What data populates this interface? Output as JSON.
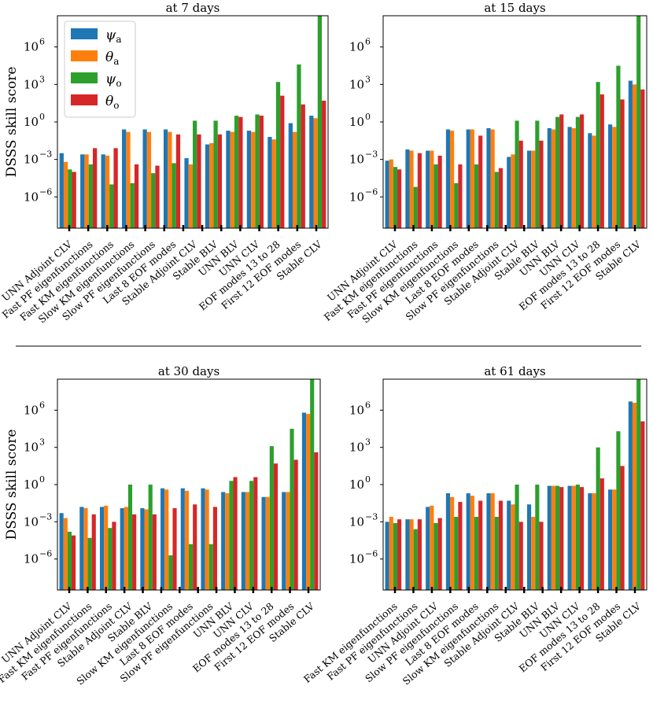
{
  "colors": {
    "psi_a": "#1f77b4",
    "theta_a": "#ff7f0e",
    "psi_o": "#2ca02c",
    "theta_o": "#d62728"
  },
  "legend": [
    {
      "key": "psi_a",
      "symbol": "ψ",
      "sub": "a"
    },
    {
      "key": "theta_a",
      "symbol": "θ",
      "sub": "a"
    },
    {
      "key": "psi_o",
      "symbol": "ψ",
      "sub": "o"
    },
    {
      "key": "theta_o",
      "symbol": "θ",
      "sub": "o"
    }
  ],
  "chart_data": [
    {
      "type": "bar",
      "title": "at 7 days",
      "ylabel": "DSSS skill score",
      "yscale": "log",
      "ylim_exp": [
        -8.5,
        8.5
      ],
      "yticks": [
        {
          "exp": -6,
          "label": "10"
        },
        {
          "exp": -3,
          "label": "10"
        },
        {
          "exp": 0,
          "label": "10"
        },
        {
          "exp": 3,
          "label": "10"
        },
        {
          "exp": 6,
          "label": "10"
        }
      ],
      "ytick_sup": [
        "−6",
        "−3",
        "0",
        "3",
        "6"
      ],
      "categories": [
        "UNN Adjoint CLV",
        "Fast PF eigenfunctions",
        "Fast KM eigenfunctions",
        "Slow KM eigenfunctions",
        "Slow PF eigenfunctions",
        "Last 8 EOF modes",
        "Stable Adjoint CLV",
        "Stable BLV",
        "UNN BLV",
        "UNN CLV",
        "EOF modes 13 to 28",
        "First 12 EOF modes",
        "Stable CLV"
      ],
      "series_exp": [
        {
          "name": "psi_a",
          "values": [
            -2.5,
            -2.6,
            -2.6,
            -0.6,
            -0.6,
            -0.6,
            -2.9,
            -1.8,
            -0.7,
            -0.7,
            -1.2,
            -0.1,
            0.5
          ]
        },
        {
          "name": "theta_a",
          "values": [
            -3.2,
            -2.6,
            -2.7,
            -0.8,
            -0.8,
            -0.8,
            -3.4,
            -1.7,
            -0.8,
            -0.8,
            -1.4,
            -0.8,
            0.3
          ]
        },
        {
          "name": "psi_o",
          "values": [
            -3.8,
            -3.4,
            -5.0,
            -4.9,
            -4.1,
            -3.3,
            0.1,
            0.1,
            0.5,
            0.6,
            3.2,
            4.6,
            8.5
          ]
        },
        {
          "name": "theta_o",
          "values": [
            -4.0,
            -2.1,
            -2.1,
            -3.4,
            -3.5,
            -1.0,
            -1.0,
            -1.0,
            0.4,
            0.5,
            2.1,
            1.4,
            1.7
          ]
        }
      ]
    },
    {
      "type": "bar",
      "title": "at 15 days",
      "ylabel": "",
      "yscale": "log",
      "ylim_exp": [
        -8.5,
        8.5
      ],
      "yticks": [
        {
          "exp": -6,
          "label": "10"
        },
        {
          "exp": -3,
          "label": "10"
        },
        {
          "exp": 0,
          "label": "10"
        },
        {
          "exp": 3,
          "label": "10"
        },
        {
          "exp": 6,
          "label": "10"
        }
      ],
      "ytick_sup": [
        "−6",
        "−3",
        "0",
        "3",
        "6"
      ],
      "categories": [
        "UNN Adjoint CLV",
        "Fast KM eigenfunctions",
        "Fast PF eigenfunctions",
        "Slow KM eigenfunctions",
        "Last 8 EOF modes",
        "Slow PF eigenfunctions",
        "Stable Adjoint CLV",
        "Stable BLV",
        "UNN BLV",
        "UNN CLV",
        "EOF modes 13 to 28",
        "First 12 EOF modes",
        "Stable CLV"
      ],
      "series_exp": [
        {
          "name": "psi_a",
          "values": [
            -3.1,
            -2.2,
            -2.3,
            -0.6,
            -0.6,
            -0.5,
            -2.8,
            -2.3,
            -0.5,
            -0.4,
            -0.9,
            -0.2,
            3.3
          ]
        },
        {
          "name": "theta_a",
          "values": [
            -3.0,
            -2.3,
            -2.3,
            -0.7,
            -0.6,
            -0.6,
            -2.6,
            -2.3,
            -0.6,
            -0.5,
            -1.1,
            -0.4,
            3.0
          ]
        },
        {
          "name": "psi_o",
          "values": [
            -3.6,
            -5.2,
            -3.4,
            -4.9,
            -3.4,
            -4.0,
            0.1,
            0.1,
            0.4,
            0.4,
            3.2,
            4.5,
            8.5
          ]
        },
        {
          "name": "theta_o",
          "values": [
            -3.8,
            -2.5,
            -2.7,
            -3.4,
            -1.1,
            -3.7,
            -1.5,
            -1.5,
            0.6,
            0.6,
            2.2,
            1.8,
            2.6
          ]
        }
      ]
    },
    {
      "type": "bar",
      "title": "at 30 days",
      "ylabel": "DSSS skill score",
      "yscale": "log",
      "ylim_exp": [
        -8.5,
        8.5
      ],
      "yticks": [
        {
          "exp": -6,
          "label": "10"
        },
        {
          "exp": -3,
          "label": "10"
        },
        {
          "exp": 0,
          "label": "10"
        },
        {
          "exp": 3,
          "label": "10"
        },
        {
          "exp": 6,
          "label": "10"
        }
      ],
      "ytick_sup": [
        "−6",
        "−3",
        "0",
        "3",
        "6"
      ],
      "categories": [
        "UNN Adjoint CLV",
        "Fast KM eigenfunctions",
        "Fast PF eigenfunctions",
        "Stable Adjoint CLV",
        "Stable BLV",
        "Slow KM eigenfunctions",
        "Last 8 EOF modes",
        "Slow PF eigenfunctions",
        "UNN BLV",
        "UNN CLV",
        "EOF modes 13 to 28",
        "First 12 EOF modes",
        "Stable CLV"
      ],
      "series_exp": [
        {
          "name": "psi_a",
          "values": [
            -2.3,
            -1.8,
            -1.8,
            -1.9,
            -1.9,
            -0.3,
            -0.3,
            -0.3,
            -0.6,
            -0.6,
            -1.0,
            -0.6,
            5.8
          ]
        },
        {
          "name": "theta_a",
          "values": [
            -2.7,
            -1.9,
            -1.7,
            -1.8,
            -2.0,
            -0.4,
            -0.5,
            -0.4,
            -0.7,
            -0.6,
            -1.0,
            -0.6,
            5.7
          ]
        },
        {
          "name": "psi_o",
          "values": [
            -3.8,
            -4.3,
            -3.5,
            0.0,
            0.0,
            -5.7,
            -4.8,
            -4.8,
            0.3,
            0.3,
            3.1,
            4.5,
            8.5
          ]
        },
        {
          "name": "theta_o",
          "values": [
            -4.1,
            -2.4,
            -3.0,
            -2.4,
            -2.4,
            -1.9,
            -1.6,
            -1.8,
            0.6,
            0.6,
            1.7,
            2.0,
            2.6
          ]
        }
      ]
    },
    {
      "type": "bar",
      "title": "at 61 days",
      "ylabel": "",
      "yscale": "log",
      "ylim_exp": [
        -8.5,
        8.5
      ],
      "yticks": [
        {
          "exp": -6,
          "label": "10"
        },
        {
          "exp": -3,
          "label": "10"
        },
        {
          "exp": 0,
          "label": "10"
        },
        {
          "exp": 3,
          "label": "10"
        },
        {
          "exp": 6,
          "label": "10"
        }
      ],
      "ytick_sup": [
        "−6",
        "−3",
        "0",
        "3",
        "6"
      ],
      "categories": [
        "Fast KM eigenfunctions",
        "Fast PF eigenfunctions",
        "UNN Adjoint CLV",
        "Slow PF eigenfunctions",
        "Last 8 EOF modes",
        "Slow KM eigenfunctions",
        "Stable Adjoint CLV",
        "Stable BLV",
        "UNN BLV",
        "UNN CLV",
        "EOF modes 13 to 28",
        "First 12 EOF modes",
        "Stable CLV"
      ],
      "series_exp": [
        {
          "name": "psi_a",
          "values": [
            -3.0,
            -2.8,
            -1.8,
            -0.7,
            -0.7,
            -0.7,
            -1.3,
            -1.6,
            -0.1,
            -0.1,
            -0.7,
            -0.4,
            6.7
          ]
        },
        {
          "name": "theta_a",
          "values": [
            -2.6,
            -2.8,
            -1.7,
            -1.0,
            -0.9,
            -0.7,
            -1.6,
            -2.6,
            -0.1,
            -0.1,
            -0.7,
            -0.4,
            6.6
          ]
        },
        {
          "name": "psi_o",
          "values": [
            -3.1,
            -3.6,
            -3.1,
            -2.6,
            -2.6,
            -2.6,
            0.0,
            0.0,
            -0.1,
            0.0,
            3.0,
            4.3,
            8.5
          ]
        },
        {
          "name": "theta_o",
          "values": [
            -2.8,
            -2.8,
            -2.7,
            -1.4,
            -1.3,
            -1.3,
            -3.0,
            -3.0,
            -0.2,
            -0.2,
            0.5,
            1.5,
            5.1
          ]
        }
      ]
    }
  ]
}
